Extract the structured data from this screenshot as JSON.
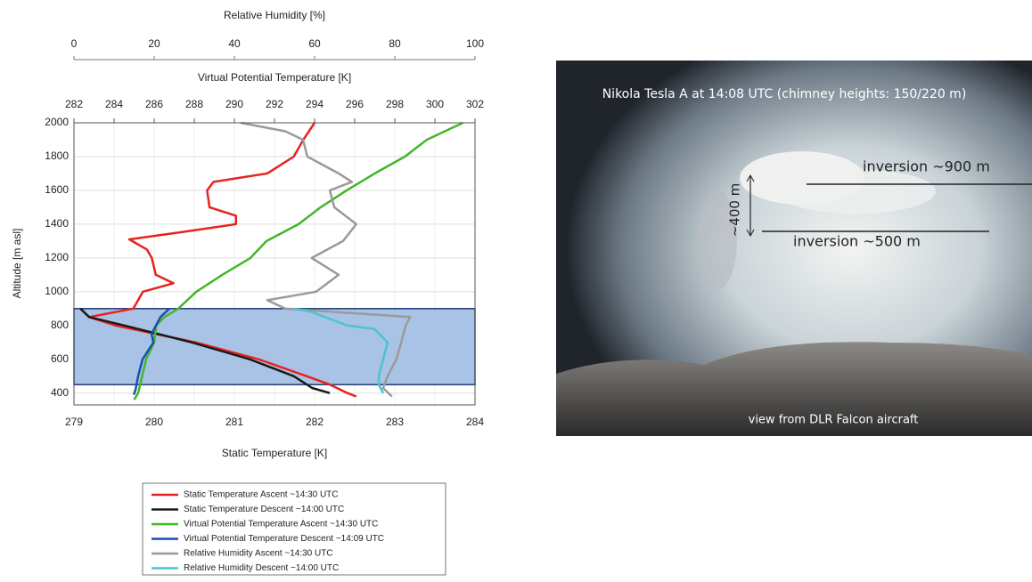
{
  "chart_data": {
    "type": "line",
    "xlabel": "Static Temperature [K]",
    "xlim": [
      279,
      284
    ],
    "xticks": [
      279,
      280,
      281,
      282,
      283,
      284
    ],
    "x2label": "Virtual Potential Temperature [K]",
    "x2lim": [
      282,
      302
    ],
    "x2ticks": [
      282,
      284,
      286,
      288,
      290,
      292,
      294,
      296,
      298,
      300,
      302
    ],
    "x3label": "Relative Humidity [%]",
    "x3lim": [
      0,
      100
    ],
    "x3ticks": [
      0,
      20,
      40,
      60,
      80,
      100
    ],
    "ylabel": "Altitude [m asl]",
    "ylim": [
      330,
      2000
    ],
    "yticks": [
      400,
      600,
      800,
      1000,
      1200,
      1400,
      1600,
      1800,
      2000
    ],
    "grid": true,
    "highlight_ylim": [
      450,
      900
    ],
    "highlight_color": "#a9c3e6",
    "series": [
      {
        "name": "Static Temperature Ascent ~14:30 UTC",
        "color": "#e8231e",
        "axis": "x",
        "x": [
          282.0,
          281.86,
          281.74,
          281.41,
          280.74,
          280.66,
          280.69,
          281.02,
          281.02,
          280.3,
          279.69,
          279.91,
          279.97,
          280.02,
          280.24,
          279.86,
          279.8,
          279.74,
          279.19,
          279.52,
          280.52,
          281.3,
          281.9,
          282.19,
          282.41,
          282.52
        ],
        "y": [
          2000,
          1900,
          1800,
          1700,
          1650,
          1600,
          1500,
          1450,
          1400,
          1350,
          1310,
          1250,
          1200,
          1100,
          1050,
          1000,
          950,
          900,
          850,
          800,
          700,
          600,
          500,
          450,
          400,
          380
        ]
      },
      {
        "name": "Static Temperature Descent ~14:00 UTC",
        "color": "#1a1a1a",
        "axis": "x",
        "x": [
          279.08,
          279.19,
          279.63,
          280.47,
          281.19,
          281.74,
          281.97,
          282.19
        ],
        "y": [
          900,
          850,
          800,
          700,
          600,
          500,
          430,
          400
        ]
      },
      {
        "name": "Virtual Potential Temperature Ascent ~14:30 UTC",
        "color": "#44b62a",
        "axis": "x2",
        "x": [
          301.4,
          299.6,
          298.5,
          297.0,
          295.6,
          294.3,
          293.2,
          291.6,
          290.8,
          289.4,
          288.1,
          287.2,
          286.5,
          286.1,
          286.0,
          285.6,
          285.4,
          285.2,
          285.0
        ],
        "y": [
          2000,
          1900,
          1800,
          1700,
          1600,
          1500,
          1400,
          1300,
          1200,
          1100,
          1000,
          900,
          850,
          800,
          700,
          600,
          500,
          400,
          360
        ]
      },
      {
        "name": "Virtual Potential Temperature Descent ~14:09 UTC",
        "color": "#1b4fb0",
        "axis": "x2",
        "x": [
          286.76,
          286.31,
          286.09,
          285.87,
          285.96,
          285.42,
          285.2,
          285.07,
          284.98
        ],
        "y": [
          900,
          850,
          800,
          750,
          700,
          600,
          500,
          420,
          390
        ]
      },
      {
        "name": "Relative Humidity Ascent ~14:30 UTC",
        "color": "#9a9a9a",
        "axis": "x3",
        "x": [
          41.6,
          52.7,
          57.1,
          58.2,
          66.0,
          69.3,
          63.8,
          64.9,
          70.4,
          67.1,
          59.3,
          66.0,
          60.4,
          48.2,
          52.7,
          83.8,
          82.7,
          81.6,
          80.4,
          78.2,
          77.1,
          79.3
        ],
        "y": [
          2000,
          1950,
          1900,
          1800,
          1700,
          1650,
          1600,
          1500,
          1400,
          1300,
          1200,
          1100,
          1000,
          950,
          900,
          850,
          800,
          700,
          600,
          500,
          430,
          380
        ]
      },
      {
        "name": "Relative Humidity Descent ~14:00 UTC",
        "color": "#4cc3d0",
        "axis": "x3",
        "x": [
          54.9,
          59.3,
          68.2,
          74.9,
          78.2,
          77.1,
          76.0,
          76.0,
          77.1
        ],
        "y": [
          900,
          880,
          800,
          780,
          700,
          600,
          500,
          450,
          400
        ]
      }
    ]
  },
  "photo": {
    "title": "Nikola Tesla A at 14:08 UTC (chimney heights: 150/220 m)",
    "upper_label": "inversion ~900 m",
    "thickness_label": "~400 m",
    "lower_label": "inversion ~500 m",
    "caption": "view from DLR Falcon aircraft"
  }
}
